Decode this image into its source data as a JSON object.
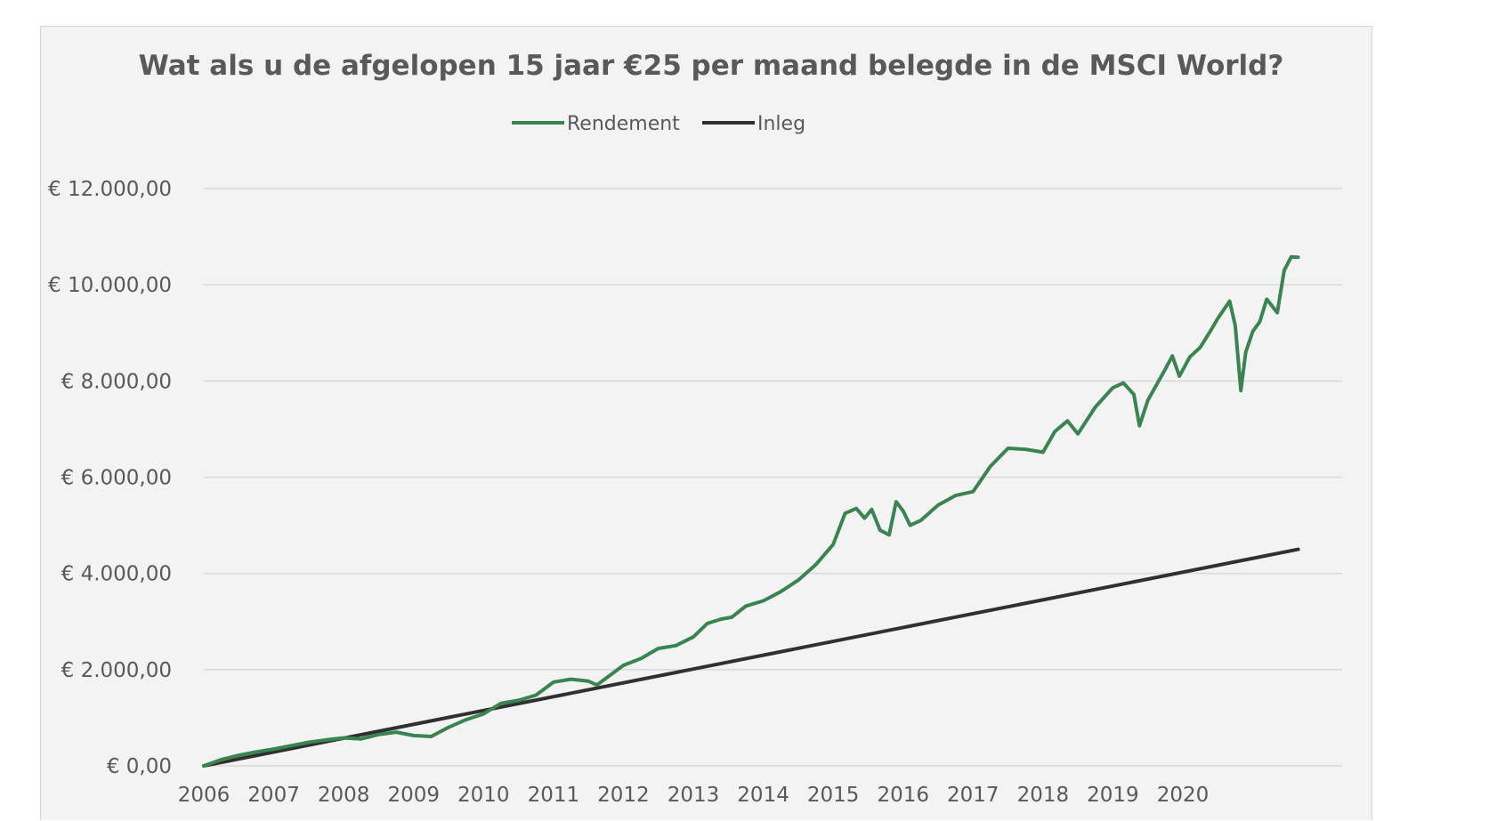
{
  "chart_data": {
    "type": "line",
    "title": "Wat als u de afgelopen 15 jaar €25 per maand belegde in de MSCI World?",
    "xlabel": "",
    "ylabel": "",
    "legend_position": "top-center",
    "grid": true,
    "xlim": [
      2006.0,
      2021.0
    ],
    "ylim": [
      0,
      12000
    ],
    "x_ticks": [
      "2006",
      "2007",
      "2008",
      "2009",
      "2010",
      "2011",
      "2012",
      "2013",
      "2014",
      "2015",
      "2016",
      "2017",
      "2018",
      "2019",
      "2020"
    ],
    "y_ticks": [
      "€ 0,00",
      "€ 2.000,00",
      "€ 4.000,00",
      "€ 6.000,00",
      "€ 8.000,00",
      "€ 10.000,00",
      "€ 12.000,00"
    ],
    "series": [
      {
        "name": "Rendement",
        "color": "#3a8451",
        "points": [
          [
            2006.0,
            0
          ],
          [
            2006.25,
            130
          ],
          [
            2006.5,
            220
          ],
          [
            2006.75,
            290
          ],
          [
            2007.0,
            350
          ],
          [
            2007.25,
            420
          ],
          [
            2007.5,
            490
          ],
          [
            2007.75,
            540
          ],
          [
            2008.0,
            580
          ],
          [
            2008.25,
            560
          ],
          [
            2008.5,
            650
          ],
          [
            2008.75,
            700
          ],
          [
            2009.0,
            630
          ],
          [
            2009.25,
            610
          ],
          [
            2009.5,
            800
          ],
          [
            2009.75,
            960
          ],
          [
            2010.0,
            1080
          ],
          [
            2010.25,
            1300
          ],
          [
            2010.5,
            1360
          ],
          [
            2010.75,
            1470
          ],
          [
            2011.0,
            1740
          ],
          [
            2011.25,
            1800
          ],
          [
            2011.5,
            1760
          ],
          [
            2011.62,
            1680
          ],
          [
            2011.75,
            1820
          ],
          [
            2012.0,
            2090
          ],
          [
            2012.25,
            2230
          ],
          [
            2012.5,
            2440
          ],
          [
            2012.75,
            2500
          ],
          [
            2013.0,
            2680
          ],
          [
            2013.2,
            2960
          ],
          [
            2013.4,
            3050
          ],
          [
            2013.55,
            3090
          ],
          [
            2013.75,
            3320
          ],
          [
            2014.0,
            3430
          ],
          [
            2014.25,
            3620
          ],
          [
            2014.5,
            3860
          ],
          [
            2014.75,
            4180
          ],
          [
            2015.0,
            4600
          ],
          [
            2015.17,
            5250
          ],
          [
            2015.33,
            5350
          ],
          [
            2015.45,
            5150
          ],
          [
            2015.55,
            5330
          ],
          [
            2015.67,
            4900
          ],
          [
            2015.8,
            4800
          ],
          [
            2015.9,
            5490
          ],
          [
            2016.0,
            5300
          ],
          [
            2016.1,
            5000
          ],
          [
            2016.25,
            5100
          ],
          [
            2016.5,
            5420
          ],
          [
            2016.75,
            5620
          ],
          [
            2017.0,
            5700
          ],
          [
            2017.25,
            6230
          ],
          [
            2017.5,
            6600
          ],
          [
            2017.75,
            6580
          ],
          [
            2018.0,
            6520
          ],
          [
            2018.17,
            6950
          ],
          [
            2018.35,
            7170
          ],
          [
            2018.5,
            6900
          ],
          [
            2018.75,
            7460
          ],
          [
            2019.0,
            7860
          ],
          [
            2019.15,
            7960
          ],
          [
            2019.3,
            7720
          ],
          [
            2019.38,
            7070
          ],
          [
            2019.5,
            7600
          ],
          [
            2019.75,
            8250
          ],
          [
            2019.85,
            8520
          ],
          [
            2019.95,
            8100
          ],
          [
            2020.1,
            8500
          ],
          [
            2020.25,
            8700
          ],
          [
            2020.4,
            9050
          ],
          [
            2020.5,
            9300
          ],
          [
            2020.67,
            9660
          ],
          [
            2020.75,
            9150
          ],
          [
            2020.83,
            7800
          ],
          [
            2020.9,
            8600
          ],
          [
            2021.0,
            9030
          ],
          [
            2021.1,
            9230
          ],
          [
            2021.2,
            9700
          ],
          [
            2021.35,
            9420
          ],
          [
            2021.45,
            10300
          ],
          [
            2021.55,
            10580
          ],
          [
            2021.65,
            10570
          ]
        ]
      },
      {
        "name": "Inleg",
        "color": "#303030",
        "points": [
          [
            2006.0,
            0
          ],
          [
            2021.65,
            4500
          ]
        ]
      }
    ]
  }
}
